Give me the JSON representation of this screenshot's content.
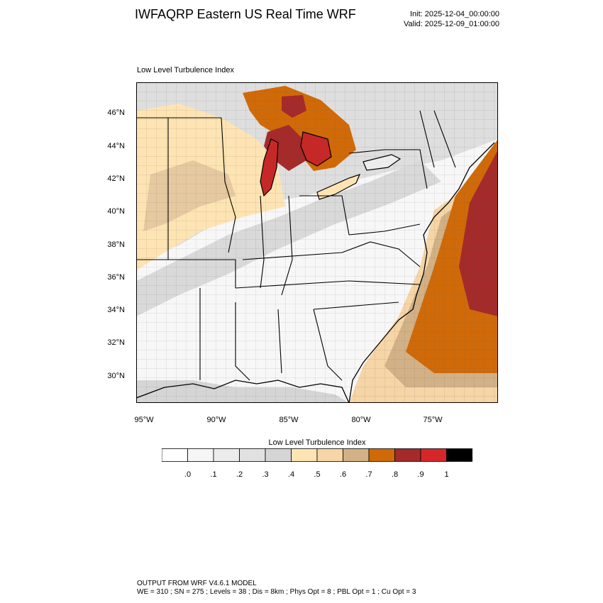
{
  "title": "IWFAQRP Eastern US Real Time WRF",
  "init": "Init: 2025-12-04_00:00:00",
  "valid": "Valid: 2025-12-09_01:00:00",
  "subtitle": "Low Level Turbulence Index",
  "map": {
    "lat_labels": [
      "46°N",
      "44°N",
      "42°N",
      "40°N",
      "38°N",
      "36°N",
      "34°N",
      "32°N",
      "30°N"
    ],
    "lon_labels": [
      "95°W",
      "90°W",
      "85°W",
      "80°W",
      "75°W"
    ]
  },
  "colorbar": {
    "title": "Low Level Turbulence Index",
    "colors": [
      "#ffffff",
      "#f6f6f6",
      "#ececec",
      "#e1e1e1",
      "#d5d5d5",
      "#fee4b3",
      "#f6d5a6",
      "#d2b186",
      "#d06a08",
      "#a52a2a",
      "#d62728",
      "#000000"
    ],
    "labels": [
      ".0",
      ".1",
      ".2",
      ".3",
      ".4",
      ".5",
      ".6",
      ".7",
      ".8",
      ".9",
      "1"
    ]
  },
  "footer": {
    "line1": "OUTPUT FROM WRF V4.6.1 MODEL",
    "line2": "WE = 310 ; SN = 275 ; Levels = 38 ; Dis = 8km ; Phys Opt = 8 ; PBL Opt = 1 ; Cu Opt = 3"
  }
}
